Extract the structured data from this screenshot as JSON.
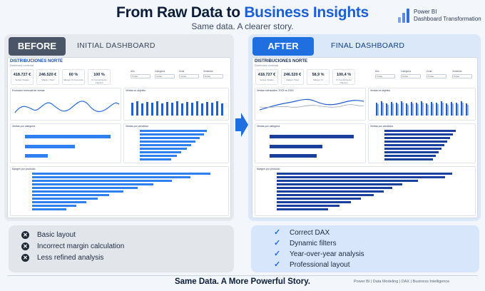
{
  "header": {
    "title_part1": "From Raw Data to ",
    "title_part2": "Business Insights",
    "subtitle": "Same data. A clearer story.",
    "badge_line1": "Power BI",
    "badge_line2": "Dashboard Transformation"
  },
  "before": {
    "tag": "BEFORE",
    "tagline": "INITIAL DASHBOARD",
    "dashboard": {
      "title": "DISTRIBUCIONES NORTE",
      "subtitle": "Dashboard comercial",
      "kpis": [
        {
          "value": "418.727 €",
          "label": "Ventas Totales"
        },
        {
          "value": "246.520 €",
          "label": "Margen Total"
        },
        {
          "value": "60 %",
          "label": "Margen % Incorrecto"
        },
        {
          "value": "100 %",
          "label": "% Cumplimiento Objetivo"
        }
      ],
      "filters": [
        {
          "label": "Año",
          "value": "Todas"
        },
        {
          "label": "Categoría",
          "value": "Todas"
        },
        {
          "label": "Zona",
          "value": "Todas"
        },
        {
          "label": "Vendedor",
          "value": "Todas"
        }
      ],
      "chart_titles": [
        "Evolución mensual de ventas",
        "Ventas vs objetivo",
        "Ventas por categoría",
        "Ventas por vendedor",
        "Margen por producto"
      ]
    },
    "points": [
      "Basic layout",
      "Incorrect margin calculation",
      "Less refined analysis"
    ]
  },
  "after": {
    "tag": "AFTER",
    "tagline": "FINAL DASHBOARD",
    "dashboard": {
      "title": "DISTRIBUCIONES NORTE",
      "subtitle": "Dashboard comercial",
      "kpis": [
        {
          "value": "418.727 €",
          "label": "Ventas Totales"
        },
        {
          "value": "246.520 €",
          "label": "Margen Total"
        },
        {
          "value": "58,9 %",
          "label": "Margen %"
        },
        {
          "value": "100,4 %",
          "label": "% Cumplimiento Objetivo"
        }
      ],
      "filters": [
        {
          "label": "Año",
          "value": "Todas"
        },
        {
          "label": "Categoría",
          "value": "Todas"
        },
        {
          "label": "Zona",
          "value": "Todas"
        },
        {
          "label": "Vendedor",
          "value": "Todas"
        }
      ],
      "chart_titles": [
        "Ventas mensuales: 2023 vs 2024",
        "Ventas vs objetivo",
        "Ventas por categoría",
        "Ventas por vendedor",
        "Margen por producto"
      ]
    },
    "points": [
      "Correct DAX",
      "Dynamic filters",
      "Year-over-year analysis",
      "Professional layout"
    ]
  },
  "footer": {
    "tagline": "Same Data. A More Powerful Story.",
    "tags": "Power BI  |  Data Modeling  |  DAX  |  Business Intelligence"
  },
  "colors": {
    "accent": "#1f6fe0",
    "dark": "#0b1d3a",
    "before_tag": "#4b5568"
  }
}
